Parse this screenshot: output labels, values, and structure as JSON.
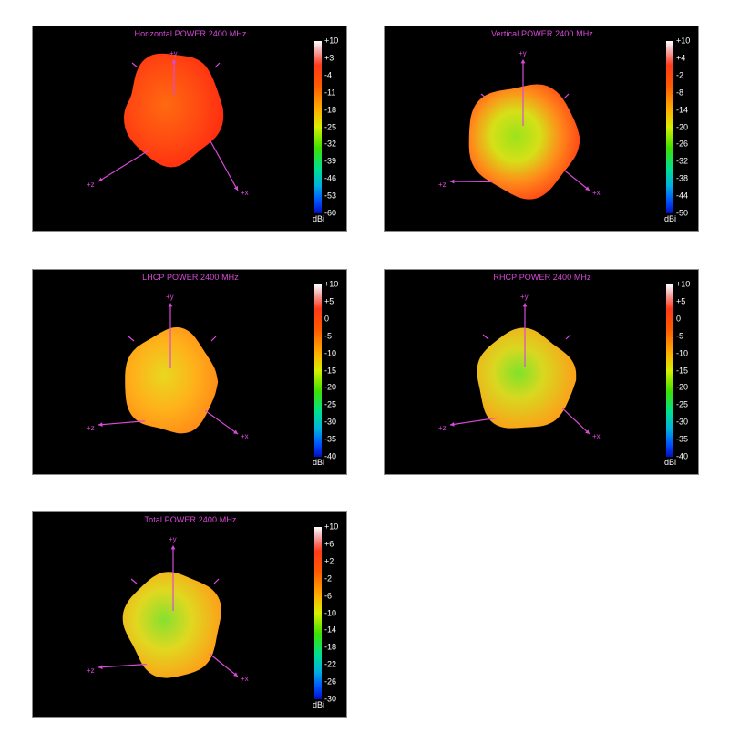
{
  "colors": {
    "axis": "#d94ad9",
    "panel_bg": "#000000"
  },
  "unit": "dBi",
  "axis_labels": {
    "y": "+y",
    "z": "+z",
    "x": "+x"
  },
  "panels": [
    {
      "title": "Horizontal POWER 2400  MHz",
      "ticks": [
        "+10",
        "+3",
        "-4",
        "-11",
        "-18",
        "-25",
        "-32",
        "-39",
        "-46",
        "-53",
        "-60"
      ]
    },
    {
      "title": "Vertical POWER 2400  MHz",
      "ticks": [
        "+10",
        "+4",
        "-2",
        "-8",
        "-14",
        "-20",
        "-26",
        "-32",
        "-38",
        "-44",
        "-50"
      ]
    },
    {
      "title": "LHCP POWER 2400  MHz",
      "ticks": [
        "+10",
        "+5",
        "0",
        "-5",
        "-10",
        "-15",
        "-20",
        "-25",
        "-30",
        "-35",
        "-40"
      ]
    },
    {
      "title": "RHCP POWER 2400  MHz",
      "ticks": [
        "+10",
        "+5",
        "0",
        "-5",
        "-10",
        "-15",
        "-20",
        "-25",
        "-30",
        "-35",
        "-40"
      ]
    },
    {
      "title": "Total POWER 2400  MHz",
      "ticks": [
        "+10",
        "+6",
        "+2",
        "-2",
        "-6",
        "-10",
        "-14",
        "-18",
        "-22",
        "-26",
        "-30"
      ]
    }
  ]
}
